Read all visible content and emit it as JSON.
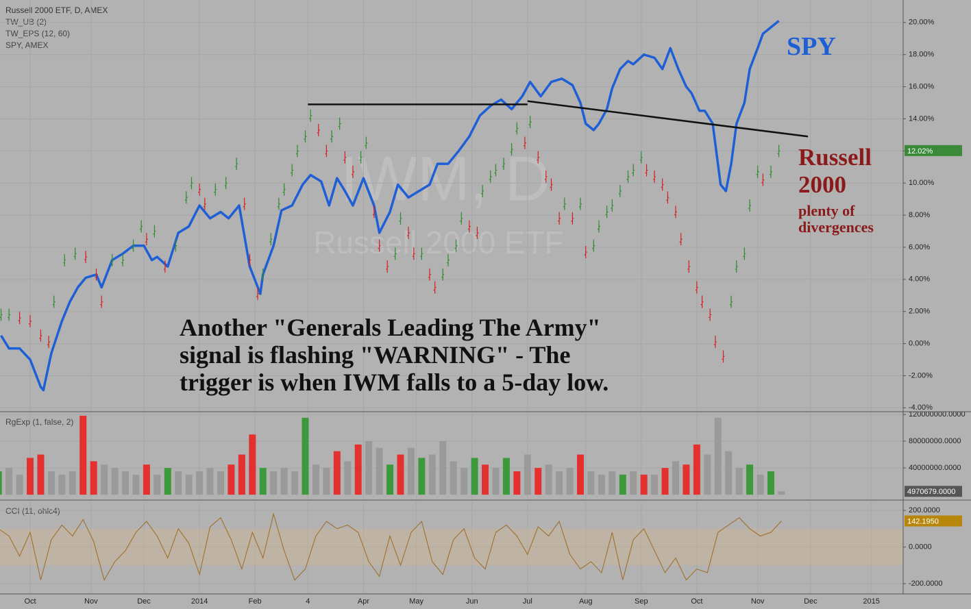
{
  "chart_data": [
    {
      "type": "line",
      "title": "Russell 2000 ETF, D, AMEX",
      "indicators": [
        "TW_UB (2)",
        "TW_EPS (12, 60)",
        "SPY, AMEX"
      ],
      "watermark": [
        "IWM, D",
        "Russell 2000 ETF"
      ],
      "xlim": [
        -11.4,
        330
      ],
      "xticks": [
        {
          "value": 0,
          "label": "Oct"
        },
        {
          "value": 23,
          "label": "Nov"
        },
        {
          "value": 43,
          "label": "Dec"
        },
        {
          "value": 64,
          "label": "2014"
        },
        {
          "value": 85,
          "label": "Feb"
        },
        {
          "value": 105,
          "label": "4"
        },
        {
          "value": 126,
          "label": "Apr"
        },
        {
          "value": 146,
          "label": "May"
        },
        {
          "value": 167,
          "label": "Jun"
        },
        {
          "value": 188,
          "label": "Jul"
        },
        {
          "value": 210,
          "label": "Aug"
        },
        {
          "value": 231,
          "label": "Sep"
        },
        {
          "value": 252,
          "label": "Oct"
        },
        {
          "value": 275,
          "label": "Nov"
        },
        {
          "value": 295,
          "label": "Dec"
        },
        {
          "value": 318,
          "label": "2015"
        }
      ],
      "ylim": [
        -4.2,
        21.4
      ],
      "yticks": [
        {
          "value": -4,
          "label": "-4.00%"
        },
        {
          "value": -2,
          "label": "-2.00%"
        },
        {
          "value": 0,
          "label": "0.00%"
        },
        {
          "value": 2,
          "label": "2.00%"
        },
        {
          "value": 4,
          "label": "4.00%"
        },
        {
          "value": 6,
          "label": "6.00%"
        },
        {
          "value": 8,
          "label": "8.00%"
        },
        {
          "value": 10,
          "label": "10.00%"
        },
        {
          "value": 12,
          "label": "12.00%"
        },
        {
          "value": 14,
          "label": "14.00%"
        },
        {
          "value": 16,
          "label": "16.00%"
        },
        {
          "value": 18,
          "label": "18.00%"
        },
        {
          "value": 20,
          "label": "20.00%"
        }
      ],
      "grid": true,
      "series": [
        {
          "name": "SPY",
          "color": "#1f5fd6",
          "style": "line",
          "x": [
            -11,
            -8,
            -4,
            0,
            4,
            5,
            8,
            12,
            15,
            18,
            21,
            25,
            27,
            31,
            35,
            39,
            43,
            46,
            48,
            52,
            56,
            60,
            64,
            68,
            72,
            75,
            79,
            83,
            87,
            88,
            92,
            95,
            99,
            103,
            106,
            110,
            113,
            116,
            119,
            122,
            126,
            130,
            132,
            136,
            139,
            143,
            147,
            151,
            154,
            158,
            162,
            166,
            170,
            174,
            178,
            182,
            186,
            189,
            193,
            197,
            201,
            205,
            208,
            210,
            213,
            215,
            218,
            220,
            223,
            226,
            228,
            232,
            236,
            239,
            242,
            245,
            248,
            250,
            253,
            255,
            258,
            261,
            263,
            265,
            267,
            270,
            272,
            275,
            277,
            280,
            283
          ],
          "values": [
            0.5,
            -0.3,
            -0.3,
            -1.0,
            -2.7,
            -2.9,
            -0.6,
            1.4,
            2.6,
            3.5,
            4.1,
            4.3,
            3.5,
            5.2,
            5.6,
            6.1,
            6.1,
            5.2,
            5.4,
            4.8,
            6.9,
            7.3,
            8.6,
            7.8,
            8.2,
            7.8,
            8.6,
            4.8,
            3.1,
            4.3,
            6.1,
            8.3,
            8.6,
            9.9,
            10.5,
            10.1,
            8.6,
            10.3,
            9.5,
            8.6,
            10.3,
            8.6,
            6.9,
            8.2,
            9.9,
            9.1,
            9.5,
            9.9,
            11.2,
            11.2,
            12.0,
            12.9,
            14.2,
            14.8,
            15.2,
            14.6,
            15.4,
            16.3,
            15.4,
            16.3,
            16.5,
            16.1,
            15.0,
            13.7,
            13.3,
            13.7,
            14.6,
            15.9,
            17.1,
            17.6,
            17.4,
            18.0,
            17.8,
            17.1,
            18.4,
            17.1,
            16.0,
            15.6,
            14.5,
            14.5,
            13.7,
            9.9,
            9.5,
            11.2,
            13.7,
            15.0,
            17.1,
            18.4,
            19.3,
            19.7,
            20.1
          ]
        },
        {
          "name": "Russell 2000",
          "color": "#8b1a1a",
          "color_up": "#2e8b2e",
          "color_down": "#d42020",
          "style": "ohlc",
          "x": [
            -11,
            -8,
            -4,
            0,
            4,
            7,
            9,
            13,
            17,
            21,
            25,
            27,
            31,
            35,
            39,
            42,
            44,
            47,
            51,
            55,
            59,
            61,
            64,
            66,
            70,
            74,
            78,
            81,
            83,
            86,
            88,
            91,
            94,
            96,
            99,
            101,
            104,
            106,
            109,
            112,
            114,
            117,
            119,
            122,
            125,
            127,
            130,
            132,
            135,
            138,
            140,
            143,
            145,
            148,
            151,
            153,
            156,
            158,
            161,
            163,
            166,
            169,
            171,
            174,
            176,
            179,
            182,
            184,
            187,
            189,
            192,
            195,
            197,
            200,
            202,
            205,
            208,
            210,
            213,
            215,
            218,
            220,
            223,
            226,
            228,
            231,
            233,
            236,
            239,
            241,
            244,
            246,
            249,
            252,
            254,
            257,
            259,
            262,
            265,
            267,
            270,
            272,
            275,
            277,
            280,
            283
          ],
          "values": [
            1.8,
            1.8,
            1.6,
            1.4,
            0.5,
            0.1,
            2.6,
            5.2,
            5.6,
            5.4,
            4.3,
            2.6,
            5.2,
            5.2,
            6.1,
            7.3,
            6.5,
            7.0,
            4.8,
            6.1,
            9.1,
            10.0,
            9.6,
            8.7,
            9.6,
            10.0,
            11.2,
            8.7,
            5.2,
            3.1,
            4.3,
            6.5,
            8.7,
            9.6,
            10.8,
            12.0,
            12.9,
            14.2,
            13.3,
            12.0,
            12.9,
            13.7,
            11.6,
            10.7,
            11.6,
            12.5,
            8.2,
            6.1,
            4.8,
            5.6,
            7.8,
            6.9,
            5.6,
            5.6,
            4.3,
            3.5,
            4.3,
            5.2,
            6.1,
            7.8,
            7.3,
            6.9,
            9.5,
            10.4,
            10.8,
            11.2,
            12.1,
            13.4,
            12.5,
            13.8,
            11.6,
            10.4,
            9.9,
            7.8,
            8.7,
            7.8,
            8.7,
            5.7,
            6.1,
            7.3,
            8.2,
            8.6,
            9.5,
            10.4,
            10.8,
            11.6,
            10.8,
            10.4,
            9.9,
            9.1,
            8.2,
            6.5,
            4.8,
            3.5,
            2.6,
            1.8,
            0.1,
            -0.8,
            2.6,
            4.8,
            5.6,
            8.6,
            10.7,
            10.2,
            10.7,
            12.0
          ]
        }
      ],
      "last_value": {
        "value": 12.02,
        "label": "12.02%",
        "color": "#3a8a3a"
      },
      "trendlines": [
        {
          "x": [
            105,
            188
          ],
          "values": [
            14.9,
            14.9
          ]
        },
        {
          "x": [
            188,
            294
          ],
          "values": [
            15.1,
            12.9
          ]
        }
      ],
      "annotations": [
        "plenty of divergences"
      ],
      "note": [
        "Another \"Generals Leading The Army\"",
        "signal is flashing \"WARNING\" - The",
        "trigger is when IWM falls to a 5-day low."
      ]
    },
    {
      "type": "bar",
      "title": "RgExp (1, false, 2)",
      "ylim": [
        -6000000,
        122000000
      ],
      "yticks": [
        {
          "value": 40000000,
          "label": "40000000.0000"
        },
        {
          "value": 80000000,
          "label": "80000000.0000"
        },
        {
          "value": 120000000,
          "label": "120000000.0000"
        }
      ],
      "x": [
        -12,
        -8,
        -4,
        0,
        4,
        8,
        12,
        16,
        20,
        24,
        28,
        32,
        36,
        40,
        44,
        48,
        52,
        56,
        60,
        64,
        68,
        72,
        76,
        80,
        84,
        88,
        92,
        96,
        100,
        104,
        108,
        112,
        116,
        120,
        124,
        128,
        132,
        136,
        140,
        144,
        148,
        152,
        156,
        160,
        164,
        168,
        172,
        176,
        180,
        184,
        188,
        192,
        196,
        200,
        204,
        208,
        212,
        216,
        220,
        224,
        228,
        232,
        236,
        240,
        244,
        248,
        252,
        256,
        260,
        264,
        268,
        272,
        276,
        280,
        284
      ],
      "values": [
        35000000,
        40000000,
        30000000,
        55000000,
        60000000,
        35000000,
        30000000,
        35000000,
        118000000,
        50000000,
        45000000,
        40000000,
        35000000,
        30000000,
        45000000,
        30000000,
        40000000,
        35000000,
        30000000,
        35000000,
        40000000,
        35000000,
        45000000,
        60000000,
        90000000,
        40000000,
        35000000,
        40000000,
        35000000,
        115000000,
        45000000,
        40000000,
        65000000,
        50000000,
        75000000,
        80000000,
        70000000,
        45000000,
        60000000,
        70000000,
        55000000,
        60000000,
        80000000,
        50000000,
        40000000,
        55000000,
        45000000,
        40000000,
        55000000,
        35000000,
        60000000,
        40000000,
        45000000,
        35000000,
        40000000,
        60000000,
        35000000,
        30000000,
        35000000,
        30000000,
        35000000,
        30000000,
        30000000,
        40000000,
        50000000,
        45000000,
        75000000,
        60000000,
        115000000,
        65000000,
        40000000,
        45000000,
        30000000,
        35000000,
        4970679
      ],
      "colors": [
        "#3c9a3c",
        "#9a9a9a",
        "#9a9a9a",
        "#e53030",
        "#e53030",
        "#9a9a9a",
        "#9a9a9a",
        "#9a9a9a",
        "#e53030",
        "#e53030",
        "#9a9a9a",
        "#9a9a9a",
        "#9a9a9a",
        "#9a9a9a",
        "#e53030",
        "#9a9a9a",
        "#3c9a3c",
        "#9a9a9a",
        "#9a9a9a",
        "#9a9a9a",
        "#9a9a9a",
        "#9a9a9a",
        "#e53030",
        "#e53030",
        "#e53030",
        "#3c9a3c",
        "#9a9a9a",
        "#9a9a9a",
        "#9a9a9a",
        "#3c9a3c",
        "#9a9a9a",
        "#9a9a9a",
        "#e53030",
        "#9a9a9a",
        "#e53030",
        "#9a9a9a",
        "#9a9a9a",
        "#3c9a3c",
        "#e53030",
        "#9a9a9a",
        "#3c9a3c",
        "#9a9a9a",
        "#9a9a9a",
        "#9a9a9a",
        "#9a9a9a",
        "#3c9a3c",
        "#e53030",
        "#9a9a9a",
        "#3c9a3c",
        "#e53030",
        "#9a9a9a",
        "#e53030",
        "#9a9a9a",
        "#9a9a9a",
        "#9a9a9a",
        "#e53030",
        "#9a9a9a",
        "#9a9a9a",
        "#9a9a9a",
        "#3c9a3c",
        "#9a9a9a",
        "#e53030",
        "#9a9a9a",
        "#e53030",
        "#9a9a9a",
        "#e53030",
        "#e53030",
        "#9a9a9a",
        "#9a9a9a",
        "#9a9a9a",
        "#9a9a9a",
        "#3c9a3c",
        "#9a9a9a",
        "#3c9a3c",
        "#9a9a9a"
      ],
      "last_value": {
        "value": 4970679,
        "label": "4970679.0000",
        "color": "#555555"
      }
    },
    {
      "type": "line",
      "title": "CCI (11, ohlc4)",
      "color": "#a0702a",
      "band": [
        -100,
        100
      ],
      "ylim": [
        -256,
        245
      ],
      "yticks": [
        {
          "value": -200,
          "label": "-200.0000"
        },
        {
          "value": 0,
          "label": "0.0000"
        },
        {
          "value": 200,
          "label": "200.0000"
        }
      ],
      "x": [
        -12,
        -8,
        -4,
        0,
        4,
        8,
        12,
        16,
        20,
        24,
        28,
        32,
        36,
        40,
        44,
        48,
        52,
        56,
        60,
        64,
        68,
        72,
        76,
        80,
        84,
        88,
        92,
        96,
        100,
        104,
        108,
        112,
        116,
        120,
        124,
        128,
        132,
        136,
        140,
        144,
        148,
        152,
        156,
        160,
        164,
        168,
        172,
        176,
        180,
        184,
        188,
        192,
        196,
        200,
        204,
        208,
        212,
        216,
        220,
        224,
        228,
        232,
        236,
        240,
        244,
        248,
        252,
        256,
        260,
        264,
        268,
        272,
        276,
        280,
        284
      ],
      "values": [
        100,
        60,
        -50,
        80,
        -180,
        40,
        120,
        60,
        150,
        30,
        -180,
        -80,
        -20,
        80,
        140,
        60,
        -60,
        100,
        20,
        -150,
        110,
        160,
        40,
        -120,
        80,
        -60,
        180,
        -20,
        -180,
        -120,
        60,
        140,
        100,
        120,
        80,
        -80,
        -160,
        60,
        -100,
        80,
        140,
        -80,
        -150,
        40,
        100,
        -60,
        -120,
        80,
        120,
        60,
        -40,
        110,
        60,
        140,
        -40,
        -120,
        -80,
        -140,
        80,
        -180,
        40,
        100,
        -20,
        -140,
        -60,
        -180,
        -120,
        -140,
        80,
        120,
        160,
        100,
        60,
        80,
        142.195
      ],
      "last_value": {
        "value": 142.195,
        "label": "142.1950",
        "color": "#b8860b"
      }
    }
  ]
}
